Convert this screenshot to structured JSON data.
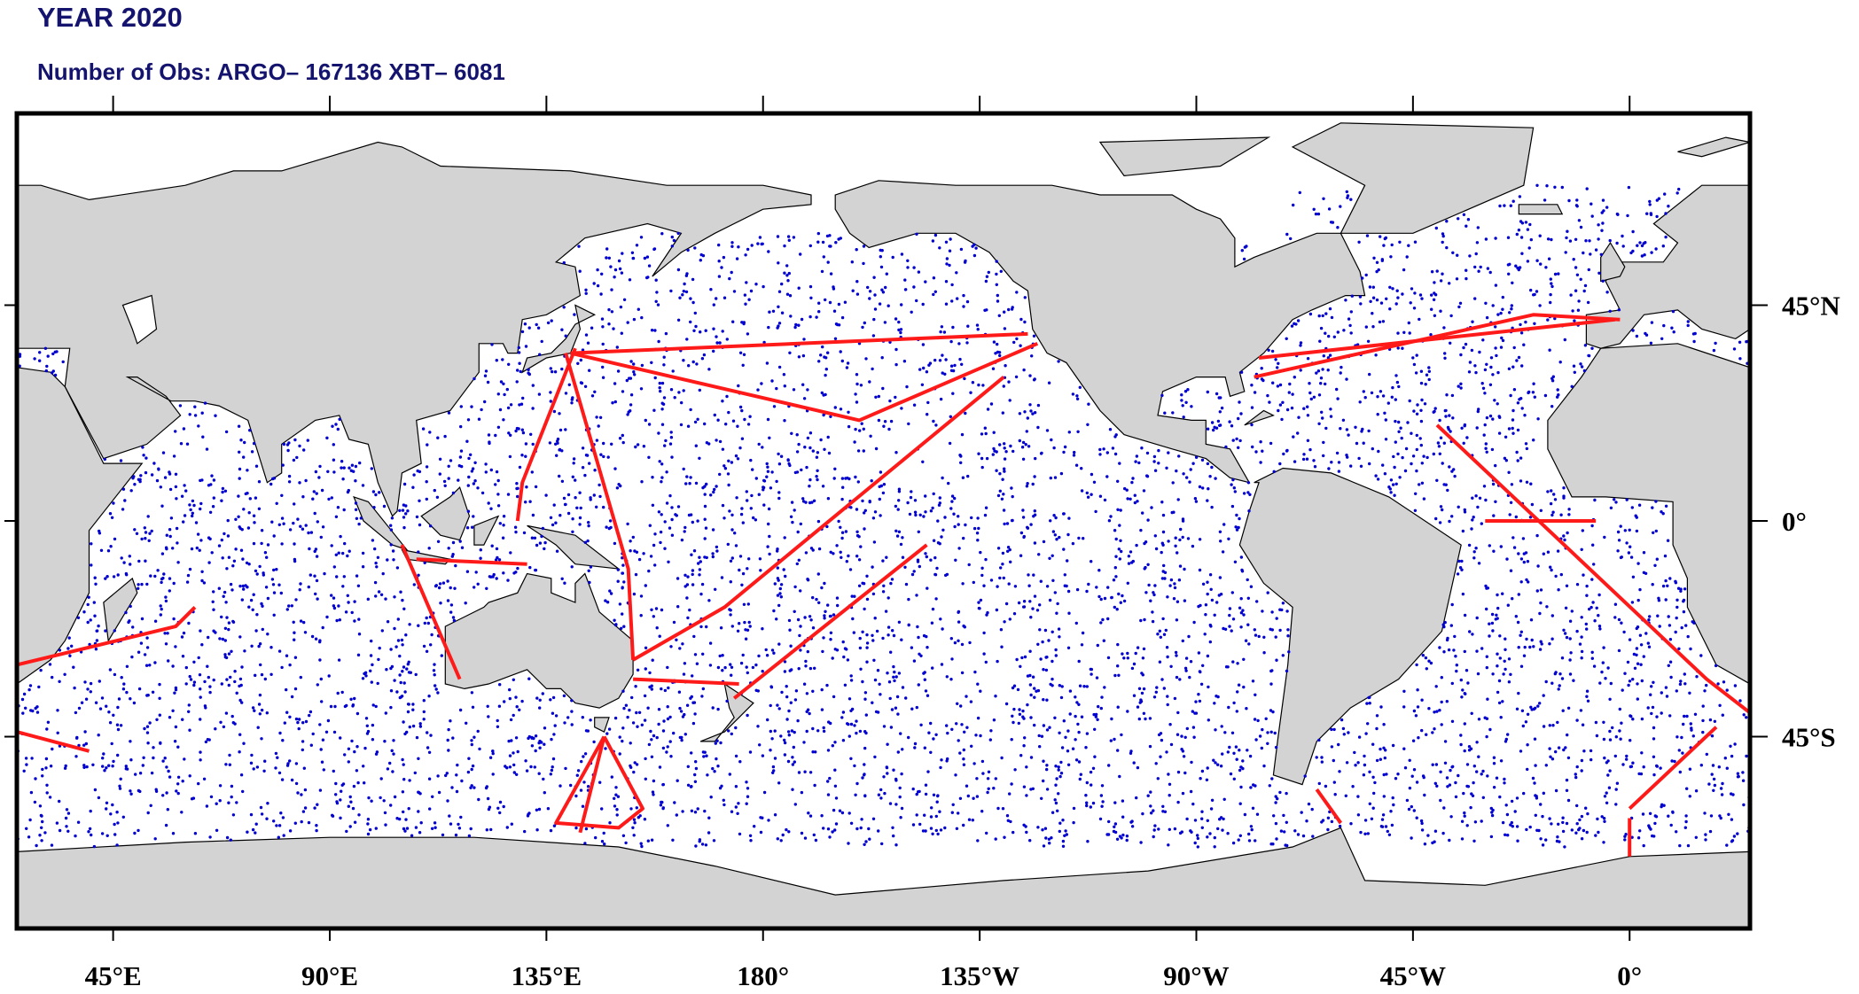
{
  "map": {
    "title": "YEAR 2020",
    "subtitle": "Number of Obs: ARGO– 167136 XBT– 6081",
    "xlim": [
      25,
      385
    ],
    "ylim": [
      -85,
      85
    ],
    "lon_ticks": [
      {
        "value": 45,
        "label": "45°E"
      },
      {
        "value": 90,
        "label": "90°E"
      },
      {
        "value": 135,
        "label": "135°E"
      },
      {
        "value": 180,
        "label": "180°"
      },
      {
        "value": 225,
        "label": "135°W"
      },
      {
        "value": 270,
        "label": "90°W"
      },
      {
        "value": 315,
        "label": "45°W"
      },
      {
        "value": 360,
        "label": "0°"
      }
    ],
    "lat_ticks": [
      {
        "value": 45,
        "label": "45°N"
      },
      {
        "value": 0,
        "label": "0°"
      },
      {
        "value": -45,
        "label": "45°S"
      }
    ]
  }
}
